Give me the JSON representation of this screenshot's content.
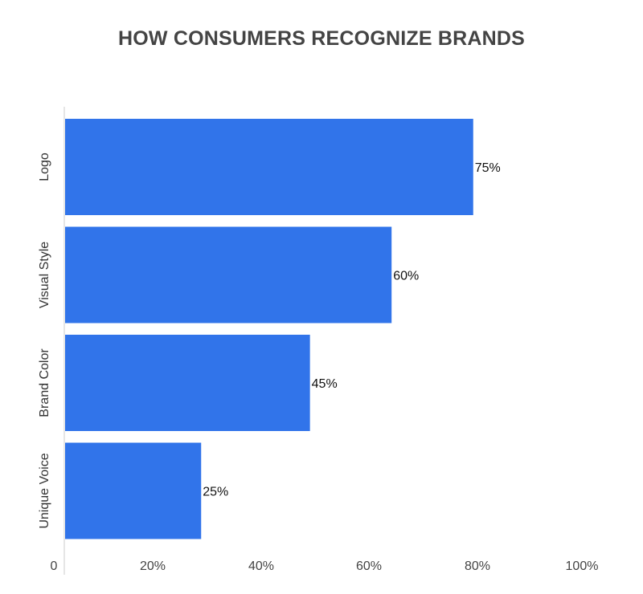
{
  "chart_data": {
    "type": "bar",
    "orientation": "horizontal",
    "title": "HOW CONSUMERS RECOGNIZE BRANDS",
    "categories": [
      "Logo",
      "Visual Style",
      "Brand Color",
      "Unique Voice"
    ],
    "values": [
      75,
      60,
      45,
      25
    ],
    "data_labels": [
      "75%",
      "60%",
      "45%",
      "25%"
    ],
    "x_ticks": [
      0,
      20,
      40,
      60,
      80,
      100
    ],
    "x_tick_labels": [
      "0",
      "20%",
      "40%",
      "60%",
      "80%",
      "100%"
    ],
    "xlim": [
      0,
      100
    ],
    "xlabel": "",
    "ylabel": "",
    "grid": false,
    "legend": "none",
    "bar_color": "#3174ea",
    "title_color": "#444444"
  }
}
